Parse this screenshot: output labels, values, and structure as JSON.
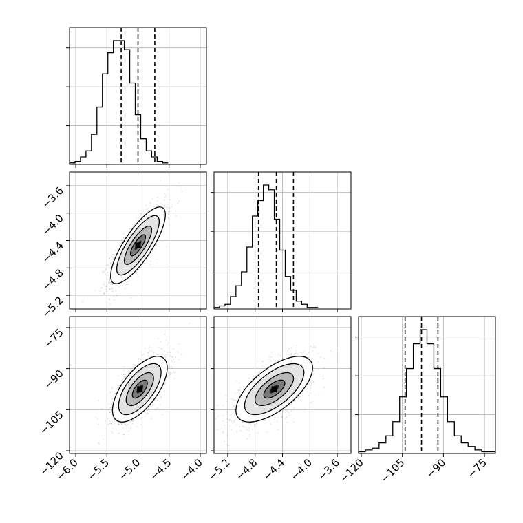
{
  "chart_data": {
    "type": "corner",
    "grid": true,
    "parameters": [
      {
        "index": 0,
        "range": [
          -6.1,
          -3.9
        ],
        "ticks": [
          -6.0,
          -5.5,
          -5.0,
          -4.5,
          -4.0
        ],
        "tick_labels": [
          "−6.0",
          "−5.5",
          "−5.0",
          "−4.5",
          "−4.0"
        ],
        "quantiles": [
          -5.27,
          -5.0,
          -4.73
        ]
      },
      {
        "index": 1,
        "range": [
          -5.4,
          -3.4
        ],
        "ticks": [
          -5.2,
          -4.8,
          -4.4,
          -4.0,
          -3.6
        ],
        "tick_labels": [
          "−5.2",
          "−4.8",
          "−4.4",
          "−4.0",
          "−3.6"
        ],
        "quantiles": [
          -4.75,
          -4.49,
          -4.24
        ]
      },
      {
        "index": 2,
        "range": [
          -121,
          -71
        ],
        "ticks": [
          -120,
          -105,
          -90,
          -75
        ],
        "tick_labels": [
          "−120",
          "−105",
          "−90",
          "−75"
        ],
        "quantiles": [
          -104,
          -98,
          -92
        ]
      }
    ],
    "histograms": [
      {
        "param": 0,
        "bin_edges_start": -6.1,
        "bin_width": 0.088,
        "counts": [
          1,
          2,
          5,
          9,
          20,
          38,
          60,
          74,
          82,
          82,
          76,
          54,
          33,
          17,
          9,
          5,
          2,
          1
        ]
      },
      {
        "param": 1,
        "bin_edges_start": -5.4,
        "bin_width": 0.08,
        "counts": [
          1,
          2,
          3,
          8,
          15,
          24,
          40,
          60,
          70,
          80,
          77,
          58,
          38,
          21,
          12,
          5,
          3,
          1,
          1
        ]
      },
      {
        "param": 2,
        "bin_edges_start": -121,
        "bin_width": 2.5,
        "counts": [
          1,
          2,
          3,
          6,
          10,
          18,
          32,
          48,
          62,
          70,
          62,
          48,
          32,
          18,
          10,
          6,
          4,
          2,
          1,
          1
        ]
      }
    ],
    "panels_2d": [
      {
        "x_param": 0,
        "y_param": 1,
        "mean": [
          -5.0,
          -4.47
        ],
        "std": [
          0.22,
          0.28
        ],
        "rho": 0.8
      },
      {
        "x_param": 0,
        "y_param": 2,
        "mean": [
          -4.97,
          -97.5
        ],
        "std": [
          0.22,
          6.0
        ],
        "rho": 0.65
      },
      {
        "x_param": 1,
        "y_param": 2,
        "mean": [
          -4.52,
          -97.5
        ],
        "std": [
          0.28,
          6.0
        ],
        "rho": 0.65
      }
    ]
  }
}
